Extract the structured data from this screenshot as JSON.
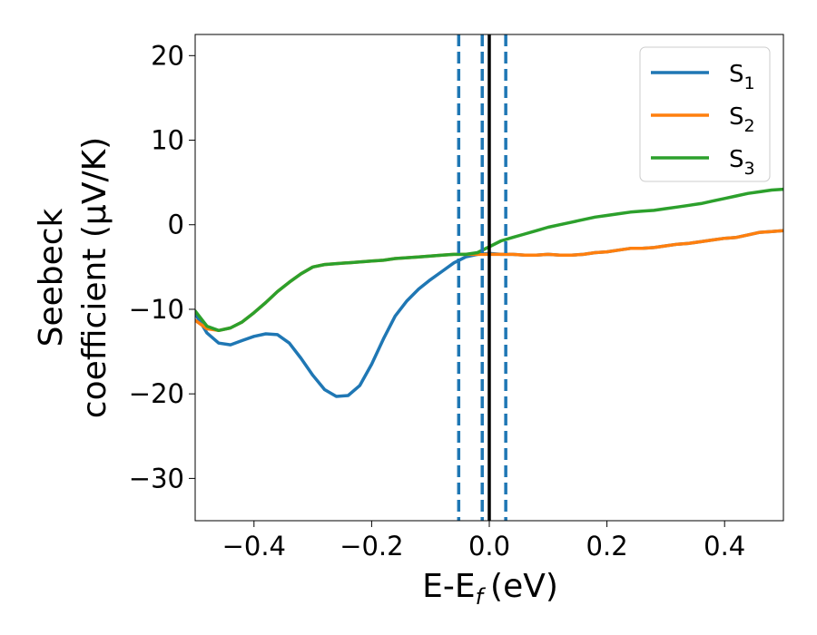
{
  "chart_data": {
    "type": "line",
    "xlabel": "E-E",
    "xlabel_sub": "f",
    "xlabel_unit": "(eV)",
    "ylabel_line1": "Seebeck",
    "ylabel_line2": "coefficient  (μV/K)",
    "xlim": [
      -0.5,
      0.5
    ],
    "ylim": [
      -35,
      22.5
    ],
    "xticks": [
      -0.4,
      -0.2,
      0.0,
      0.2,
      0.4
    ],
    "xtick_labels": [
      "−0.4",
      "−0.2",
      "0.0",
      "0.2",
      "0.4"
    ],
    "yticks": [
      -30,
      -20,
      -10,
      0,
      10,
      20
    ],
    "ytick_labels": [
      "−30",
      "−20",
      "−10",
      "0",
      "10",
      "20"
    ],
    "grid": false,
    "legend_position": "top-right",
    "series": [
      {
        "name": "S",
        "sub": "1",
        "color": "#1f77b4",
        "points": [
          [
            -0.5,
            -10.5
          ],
          [
            -0.48,
            -12.8
          ],
          [
            -0.46,
            -14.0
          ],
          [
            -0.44,
            -14.2
          ],
          [
            -0.42,
            -13.7
          ],
          [
            -0.4,
            -13.2
          ],
          [
            -0.38,
            -12.9
          ],
          [
            -0.36,
            -13.0
          ],
          [
            -0.34,
            -14.0
          ],
          [
            -0.32,
            -15.8
          ],
          [
            -0.3,
            -17.8
          ],
          [
            -0.28,
            -19.5
          ],
          [
            -0.26,
            -20.3
          ],
          [
            -0.24,
            -20.2
          ],
          [
            -0.22,
            -19.0
          ],
          [
            -0.2,
            -16.5
          ],
          [
            -0.18,
            -13.5
          ],
          [
            -0.16,
            -10.8
          ],
          [
            -0.14,
            -9.0
          ],
          [
            -0.12,
            -7.6
          ],
          [
            -0.1,
            -6.5
          ],
          [
            -0.08,
            -5.5
          ],
          [
            -0.06,
            -4.5
          ],
          [
            -0.04,
            -3.8
          ],
          [
            -0.02,
            -3.5
          ],
          [
            0.0,
            -3.4
          ],
          [
            0.02,
            -3.5
          ],
          [
            0.04,
            -3.5
          ],
          [
            0.06,
            -3.6
          ],
          [
            0.08,
            -3.6
          ],
          [
            0.1,
            -3.5
          ],
          [
            0.12,
            -3.6
          ],
          [
            0.14,
            -3.6
          ],
          [
            0.16,
            -3.5
          ],
          [
            0.18,
            -3.3
          ],
          [
            0.2,
            -3.2
          ],
          [
            0.22,
            -3.0
          ],
          [
            0.24,
            -2.8
          ],
          [
            0.26,
            -2.8
          ],
          [
            0.28,
            -2.7
          ],
          [
            0.3,
            -2.5
          ],
          [
            0.32,
            -2.3
          ],
          [
            0.34,
            -2.2
          ],
          [
            0.36,
            -2.0
          ],
          [
            0.38,
            -1.8
          ],
          [
            0.4,
            -1.6
          ],
          [
            0.42,
            -1.5
          ],
          [
            0.44,
            -1.2
          ],
          [
            0.46,
            -0.9
          ],
          [
            0.48,
            -0.8
          ],
          [
            0.5,
            -0.7
          ]
        ]
      },
      {
        "name": "S",
        "sub": "2",
        "color": "#ff7f0e",
        "points": [
          [
            -0.5,
            -11.3
          ],
          [
            -0.48,
            -12.3
          ],
          [
            -0.46,
            -12.5
          ],
          [
            -0.44,
            -12.2
          ],
          [
            -0.42,
            -11.5
          ],
          [
            -0.4,
            -10.4
          ],
          [
            -0.38,
            -9.2
          ],
          [
            -0.36,
            -7.9
          ],
          [
            -0.34,
            -6.8
          ],
          [
            -0.32,
            -5.8
          ],
          [
            -0.3,
            -5.0
          ],
          [
            -0.28,
            -4.7
          ],
          [
            -0.26,
            -4.6
          ],
          [
            -0.24,
            -4.5
          ],
          [
            -0.22,
            -4.4
          ],
          [
            -0.2,
            -4.3
          ],
          [
            -0.18,
            -4.2
          ],
          [
            -0.16,
            -4.0
          ],
          [
            -0.14,
            -3.9
          ],
          [
            -0.12,
            -3.8
          ],
          [
            -0.1,
            -3.7
          ],
          [
            -0.08,
            -3.6
          ],
          [
            -0.06,
            -3.5
          ],
          [
            -0.04,
            -3.5
          ],
          [
            -0.02,
            -3.5
          ],
          [
            0.0,
            -3.5
          ],
          [
            0.02,
            -3.5
          ],
          [
            0.04,
            -3.5
          ],
          [
            0.06,
            -3.6
          ],
          [
            0.08,
            -3.6
          ],
          [
            0.1,
            -3.5
          ],
          [
            0.12,
            -3.6
          ],
          [
            0.14,
            -3.6
          ],
          [
            0.16,
            -3.5
          ],
          [
            0.18,
            -3.3
          ],
          [
            0.2,
            -3.2
          ],
          [
            0.22,
            -3.0
          ],
          [
            0.24,
            -2.8
          ],
          [
            0.26,
            -2.8
          ],
          [
            0.28,
            -2.7
          ],
          [
            0.3,
            -2.5
          ],
          [
            0.32,
            -2.3
          ],
          [
            0.34,
            -2.2
          ],
          [
            0.36,
            -2.0
          ],
          [
            0.38,
            -1.8
          ],
          [
            0.4,
            -1.6
          ],
          [
            0.42,
            -1.5
          ],
          [
            0.44,
            -1.2
          ],
          [
            0.46,
            -0.9
          ],
          [
            0.48,
            -0.8
          ],
          [
            0.5,
            -0.7
          ]
        ]
      },
      {
        "name": "S",
        "sub": "3",
        "color": "#2ca02c",
        "points": [
          [
            -0.5,
            -10.2
          ],
          [
            -0.48,
            -12.0
          ],
          [
            -0.46,
            -12.5
          ],
          [
            -0.44,
            -12.2
          ],
          [
            -0.42,
            -11.5
          ],
          [
            -0.4,
            -10.4
          ],
          [
            -0.38,
            -9.2
          ],
          [
            -0.36,
            -7.9
          ],
          [
            -0.34,
            -6.8
          ],
          [
            -0.32,
            -5.8
          ],
          [
            -0.3,
            -5.0
          ],
          [
            -0.28,
            -4.7
          ],
          [
            -0.26,
            -4.6
          ],
          [
            -0.24,
            -4.5
          ],
          [
            -0.22,
            -4.4
          ],
          [
            -0.2,
            -4.3
          ],
          [
            -0.18,
            -4.2
          ],
          [
            -0.16,
            -4.0
          ],
          [
            -0.14,
            -3.9
          ],
          [
            -0.12,
            -3.8
          ],
          [
            -0.1,
            -3.7
          ],
          [
            -0.08,
            -3.6
          ],
          [
            -0.06,
            -3.5
          ],
          [
            -0.04,
            -3.5
          ],
          [
            -0.02,
            -3.3
          ],
          [
            0.0,
            -2.6
          ],
          [
            0.02,
            -1.9
          ],
          [
            0.04,
            -1.5
          ],
          [
            0.06,
            -1.1
          ],
          [
            0.08,
            -0.7
          ],
          [
            0.1,
            -0.3
          ],
          [
            0.12,
            0.0
          ],
          [
            0.14,
            0.3
          ],
          [
            0.16,
            0.6
          ],
          [
            0.18,
            0.9
          ],
          [
            0.2,
            1.1
          ],
          [
            0.22,
            1.3
          ],
          [
            0.24,
            1.5
          ],
          [
            0.26,
            1.6
          ],
          [
            0.28,
            1.7
          ],
          [
            0.3,
            1.9
          ],
          [
            0.32,
            2.1
          ],
          [
            0.34,
            2.3
          ],
          [
            0.36,
            2.5
          ],
          [
            0.38,
            2.8
          ],
          [
            0.4,
            3.1
          ],
          [
            0.42,
            3.4
          ],
          [
            0.44,
            3.7
          ],
          [
            0.46,
            3.9
          ],
          [
            0.48,
            4.1
          ],
          [
            0.5,
            4.2
          ]
        ]
      }
    ],
    "vlines": [
      {
        "x": 0.0,
        "style": "solid",
        "color": "#000000"
      },
      {
        "x": -0.052,
        "style": "dashed",
        "color": "#1f77b4"
      },
      {
        "x": -0.012,
        "style": "dashed",
        "color": "#1f77b4"
      },
      {
        "x": 0.028,
        "style": "dashed",
        "color": "#1f77b4"
      }
    ]
  }
}
